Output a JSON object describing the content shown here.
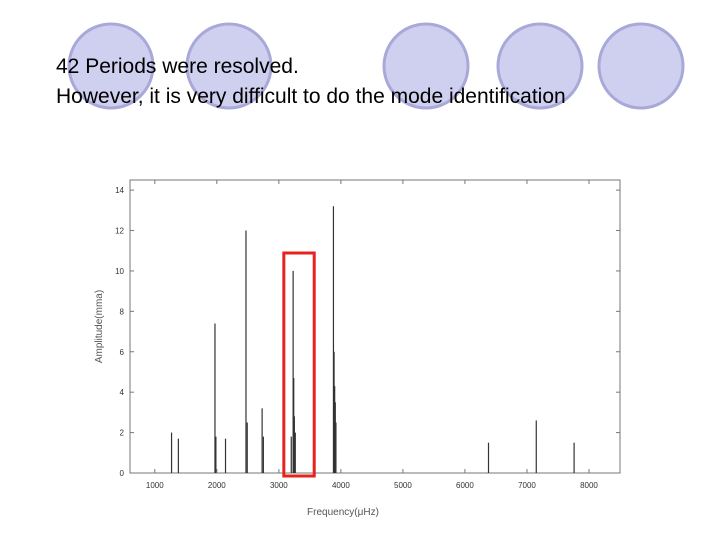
{
  "slide": {
    "line1": "42 Periods were resolved.",
    "line2": "However, it is very difficult to do the mode identification",
    "circle_fill": "#cfcfef",
    "circle_stroke": "#a9a9d9"
  },
  "chart_data": {
    "type": "bar",
    "xlabel": "Frequency(μHz)",
    "ylabel": "Amplitude(mma)",
    "xlim": [
      600,
      8500
    ],
    "ylim": [
      0,
      14.5
    ],
    "xticks": [
      1000,
      2000,
      3000,
      4000,
      5000,
      6000,
      7000,
      8000
    ],
    "yticks": [
      0,
      2,
      4,
      6,
      8,
      10,
      12,
      14
    ],
    "grid": false,
    "bar_color": "#333333",
    "highlight_color": "#e8231f",
    "highlight_range": [
      3080,
      3570
    ],
    "peaks": [
      {
        "x": 1270,
        "y": 2.0
      },
      {
        "x": 1380,
        "y": 1.7
      },
      {
        "x": 1970,
        "y": 7.4
      },
      {
        "x": 1985,
        "y": 1.8
      },
      {
        "x": 2140,
        "y": 1.7
      },
      {
        "x": 2470,
        "y": 12.0
      },
      {
        "x": 2490,
        "y": 2.5
      },
      {
        "x": 2730,
        "y": 3.2
      },
      {
        "x": 2750,
        "y": 1.8
      },
      {
        "x": 3200,
        "y": 1.8
      },
      {
        "x": 3230,
        "y": 10.0
      },
      {
        "x": 3240,
        "y": 4.7
      },
      {
        "x": 3250,
        "y": 2.8
      },
      {
        "x": 3265,
        "y": 2.0
      },
      {
        "x": 3880,
        "y": 13.2
      },
      {
        "x": 3890,
        "y": 6.0
      },
      {
        "x": 3900,
        "y": 4.3
      },
      {
        "x": 3910,
        "y": 3.5
      },
      {
        "x": 3920,
        "y": 2.5
      },
      {
        "x": 6380,
        "y": 1.5
      },
      {
        "x": 7150,
        "y": 2.6
      },
      {
        "x": 7760,
        "y": 1.5
      }
    ]
  }
}
